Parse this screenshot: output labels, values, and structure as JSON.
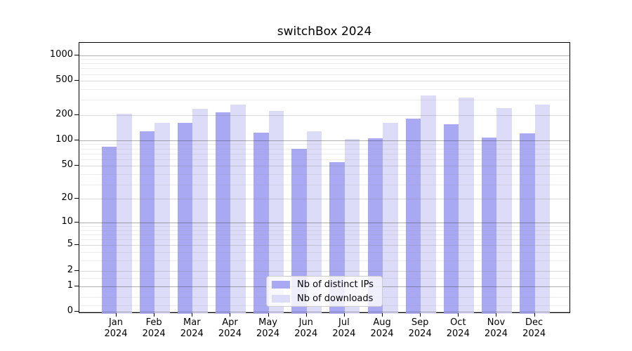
{
  "chart_data": {
    "type": "bar",
    "title": "switchBox 2024",
    "categories": [
      "Jan",
      "Feb",
      "Mar",
      "Apr",
      "May",
      "Jun",
      "Jul",
      "Aug",
      "Sep",
      "Oct",
      "Nov",
      "Dec"
    ],
    "x_tick_year": "2024",
    "series": [
      {
        "name": "Nb of distinct IPs",
        "color": "#a8a8f3",
        "values": [
          84,
          129,
          162,
          213,
          123,
          79,
          55,
          106,
          181,
          156,
          108,
          121
        ]
      },
      {
        "name": "Nb of downloads",
        "color": "#dcdbf8",
        "values": [
          204,
          161,
          234,
          262,
          221,
          129,
          104,
          160,
          337,
          317,
          240,
          264
        ]
      }
    ],
    "xlabel": "",
    "ylabel": "",
    "yscale": "log1p",
    "ylim": [
      0,
      1400
    ],
    "yticks": [
      {
        "label": "1000",
        "value": 1000
      },
      {
        "label": "500",
        "value": 500
      },
      {
        "label": "200",
        "value": 200
      },
      {
        "label": "100",
        "value": 100
      },
      {
        "label": "50",
        "value": 50
      },
      {
        "label": "20",
        "value": 20
      },
      {
        "label": "10",
        "value": 10
      },
      {
        "label": "5",
        "value": 5
      },
      {
        "label": "2",
        "value": 2
      },
      {
        "label": "1",
        "value": 1
      },
      {
        "label": "0",
        "value": 0
      }
    ],
    "grid": "both",
    "legend_position": "lower-center",
    "colors": {
      "axis": "#000000",
      "grid_decade": "#a9a9a9",
      "grid_mid": "#d2d2d2",
      "grid_minor": "#eaeaea",
      "background": "#ffffff"
    }
  }
}
